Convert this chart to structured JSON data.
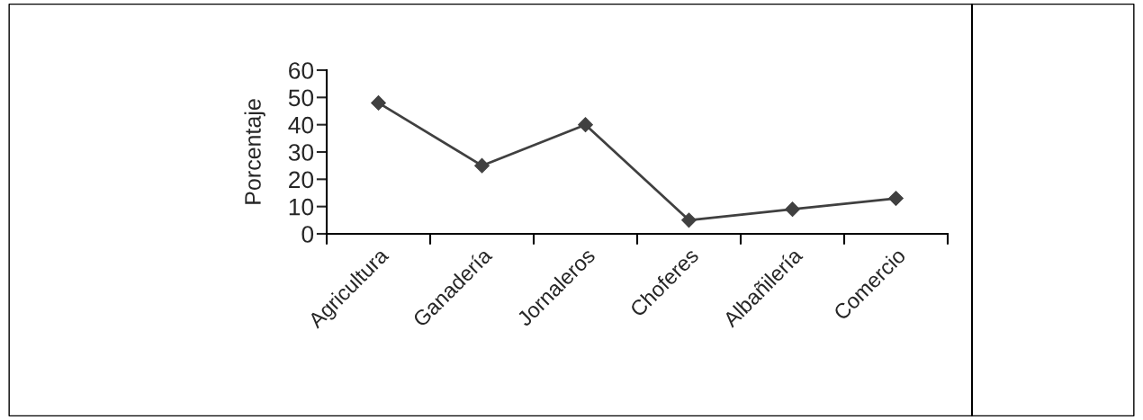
{
  "chart_data": {
    "type": "line",
    "ylabel": "Porcentaje",
    "categories": [
      "Agricultura",
      "Ganadería",
      "Jornaleros",
      "Choferes",
      "Albañilería",
      "Comercio"
    ],
    "series": [
      {
        "color": "#404040",
        "values": [
          48,
          25,
          40,
          5,
          9,
          13
        ]
      }
    ],
    "ylim": [
      0,
      60
    ],
    "yticks": [
      0,
      10,
      20,
      30,
      40,
      50,
      60
    ],
    "marker": "diamond",
    "line_style": "solid",
    "grid": false
  }
}
